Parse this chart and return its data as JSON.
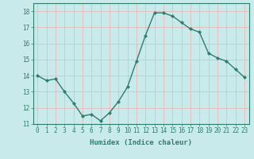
{
  "x": [
    0,
    1,
    2,
    3,
    4,
    5,
    6,
    7,
    8,
    9,
    10,
    11,
    12,
    13,
    14,
    15,
    16,
    17,
    18,
    19,
    20,
    21,
    22,
    23
  ],
  "y": [
    14.0,
    13.7,
    13.8,
    13.0,
    12.3,
    11.5,
    11.6,
    11.2,
    11.7,
    12.4,
    13.3,
    14.9,
    16.5,
    17.9,
    17.9,
    17.7,
    17.3,
    16.9,
    16.7,
    15.4,
    15.1,
    14.9,
    14.4,
    13.9
  ],
  "line_color": "#2e7d6e",
  "marker": "D",
  "marker_size": 2.0,
  "bg_color": "#c8eaea",
  "grid_color": "#e8b8b8",
  "xlabel": "Humidex (Indice chaleur)",
  "ylabel": "",
  "title": "",
  "xlim": [
    -0.5,
    23.5
  ],
  "ylim": [
    11,
    18.5
  ],
  "yticks": [
    11,
    12,
    13,
    14,
    15,
    16,
    17,
    18
  ],
  "xticks": [
    0,
    1,
    2,
    3,
    4,
    5,
    6,
    7,
    8,
    9,
    10,
    11,
    12,
    13,
    14,
    15,
    16,
    17,
    18,
    19,
    20,
    21,
    22,
    23
  ],
  "tick_color": "#2e7d6e",
  "label_fontsize": 6.5,
  "tick_fontsize": 5.5,
  "axis_color": "#2e7d6e",
  "linewidth": 1.0
}
